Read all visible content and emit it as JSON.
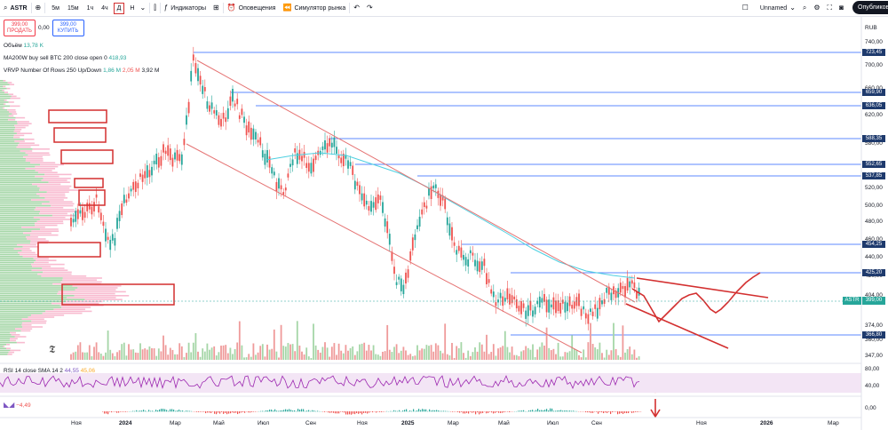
{
  "toolbar": {
    "symbol": "ASTR",
    "timeframes": [
      "5м",
      "15м",
      "1ч",
      "4ч",
      "Д",
      "Н"
    ],
    "active_timeframe": "Д",
    "indicators_label": "Индикаторы",
    "alerts_label": "Оповещения",
    "replay_label": "Симулятор рынка",
    "layout_name": "Unnamed",
    "publish_label": "Опубликовать"
  },
  "trade": {
    "sell_price": "399,00",
    "sell_label": "ПРОДАТЬ",
    "spread": "0,00",
    "buy_price": "399,00",
    "buy_label": "КУПИТЬ"
  },
  "legend": {
    "volume_label": "Объём",
    "volume_value": "13,78 K",
    "ma_label": "MA200W buy sell BTC 200 close open 0",
    "ma_value": "418,93",
    "vrvp_label": "VRVP Number Of Rows 250 Up/Down",
    "vrvp_v1": "1,86 M",
    "vrvp_v2": "2,05 M",
    "vrvp_v3": "3,92 M",
    "rsi_label": "RSI 14 close SMA 14 2",
    "rsi_v1": "44,55",
    "rsi_v2": "45,06",
    "macd_value": "−4,49"
  },
  "price_axis": {
    "currency": "RUB",
    "ticks": [
      "740,00",
      "700,00",
      "660,00",
      "620,00",
      "580,00",
      "540,00",
      "520,00",
      "500,00",
      "480,00",
      "460,00",
      "440,00",
      "420,00",
      "404,00",
      "374,00",
      "360,00",
      "347,00"
    ],
    "level_labels": [
      "723,45",
      "659,90",
      "636,05",
      "588,35",
      "552,65",
      "537,85",
      "454,25",
      "425,20",
      "366,80"
    ],
    "current_symbol": "ASTR",
    "current_price": "399,00"
  },
  "rsi_axis": [
    "80,00",
    "40,00"
  ],
  "macd_axis": [
    "0,00"
  ],
  "time_axis": [
    "Ноя",
    "2024",
    "Мар",
    "Май",
    "Июл",
    "Сен",
    "Ноя",
    "2025",
    "Мар",
    "Май",
    "Июл",
    "Сен",
    "Ноя",
    "2026",
    "Мар"
  ],
  "colors": {
    "up": "#26a69a",
    "down": "#ef5350",
    "level": "#2962ff",
    "channel": "#e57373",
    "ma": "#4dd0e1",
    "annot": "#d32f2f"
  }
}
